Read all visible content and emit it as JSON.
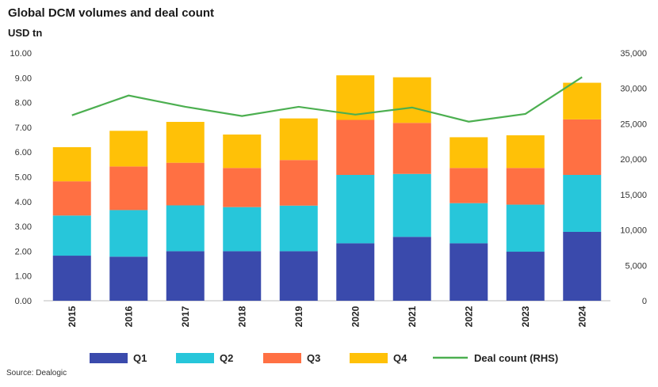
{
  "title": "Global DCM volumes and deal count",
  "subtitle": "USD tn",
  "source": "Source: Dealogic",
  "chart_data": {
    "type": "bar",
    "stacked": true,
    "categories": [
      "2015",
      "2016",
      "2017",
      "2018",
      "2019",
      "2020",
      "2021",
      "2022",
      "2023",
      "2024"
    ],
    "series": [
      {
        "name": "Q1",
        "color": "#3a4aac",
        "values": [
          1.82,
          1.78,
          2.0,
          2.0,
          2.0,
          2.32,
          2.58,
          2.32,
          1.98,
          2.78
        ]
      },
      {
        "name": "Q2",
        "color": "#27c6da",
        "values": [
          1.62,
          1.88,
          1.85,
          1.78,
          1.84,
          2.76,
          2.54,
          1.62,
          1.9,
          2.3
        ]
      },
      {
        "name": "Q3",
        "color": "#ff7043",
        "values": [
          1.38,
          1.76,
          1.72,
          1.58,
          1.84,
          2.22,
          2.06,
          1.42,
          1.48,
          2.24
        ]
      },
      {
        "name": "Q4",
        "color": "#ffc107",
        "values": [
          1.38,
          1.44,
          1.65,
          1.35,
          1.68,
          1.8,
          1.84,
          1.24,
          1.32,
          1.48
        ]
      }
    ],
    "line": {
      "name": "Deal count (RHS)",
      "color": "#4caf50",
      "values": [
        26200,
        29000,
        27400,
        26100,
        27400,
        26300,
        27300,
        25300,
        26400,
        31600
      ]
    },
    "ylim": [
      0,
      10
    ],
    "y_ticks": [
      "0.00",
      "1.00",
      "2.00",
      "3.00",
      "4.00",
      "5.00",
      "6.00",
      "7.00",
      "8.00",
      "9.00",
      "10.00"
    ],
    "y2lim": [
      0,
      35000
    ],
    "y2_ticks": [
      "0",
      "5,000",
      "10,000",
      "15,000",
      "20,000",
      "25,000",
      "30,000",
      "35,000"
    ],
    "grid": false,
    "legend": "bottom"
  }
}
